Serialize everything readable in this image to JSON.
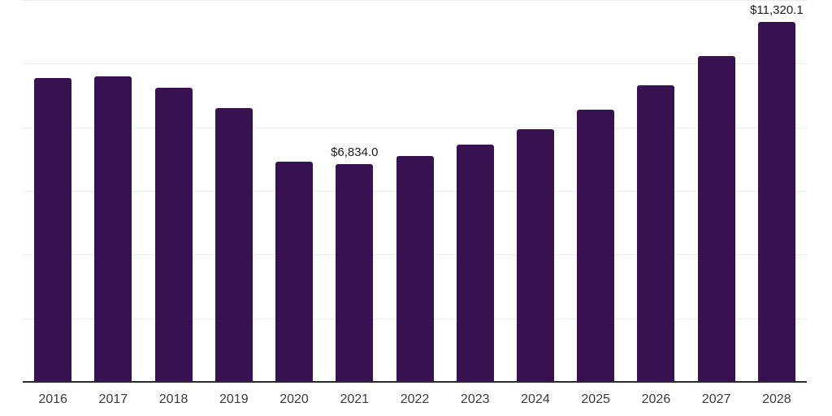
{
  "chart_data": {
    "type": "bar",
    "title": "",
    "xlabel": "",
    "ylabel": "",
    "categories": [
      "2016",
      "2017",
      "2018",
      "2019",
      "2020",
      "2021",
      "2022",
      "2023",
      "2024",
      "2025",
      "2026",
      "2027",
      "2028"
    ],
    "values": [
      9550,
      9600,
      9240,
      8600,
      6930,
      6834.0,
      7090,
      7450,
      7930,
      8550,
      9320,
      10240,
      11320.1
    ],
    "data_labels": {
      "2021": "$6,834.0",
      "2028": "$11,320.1"
    },
    "ylim": [
      0,
      12000
    ],
    "grid": {
      "visible": true,
      "interval": 2000,
      "orientation": "horizontal"
    },
    "legend": "none",
    "colors": {
      "bar": "#371150",
      "axis_line": "#2b2b2b",
      "gridline": "#ececec",
      "tick_label": "#3a3a3a",
      "value_label": "#1d1d1d",
      "background": "#ffffff"
    }
  }
}
